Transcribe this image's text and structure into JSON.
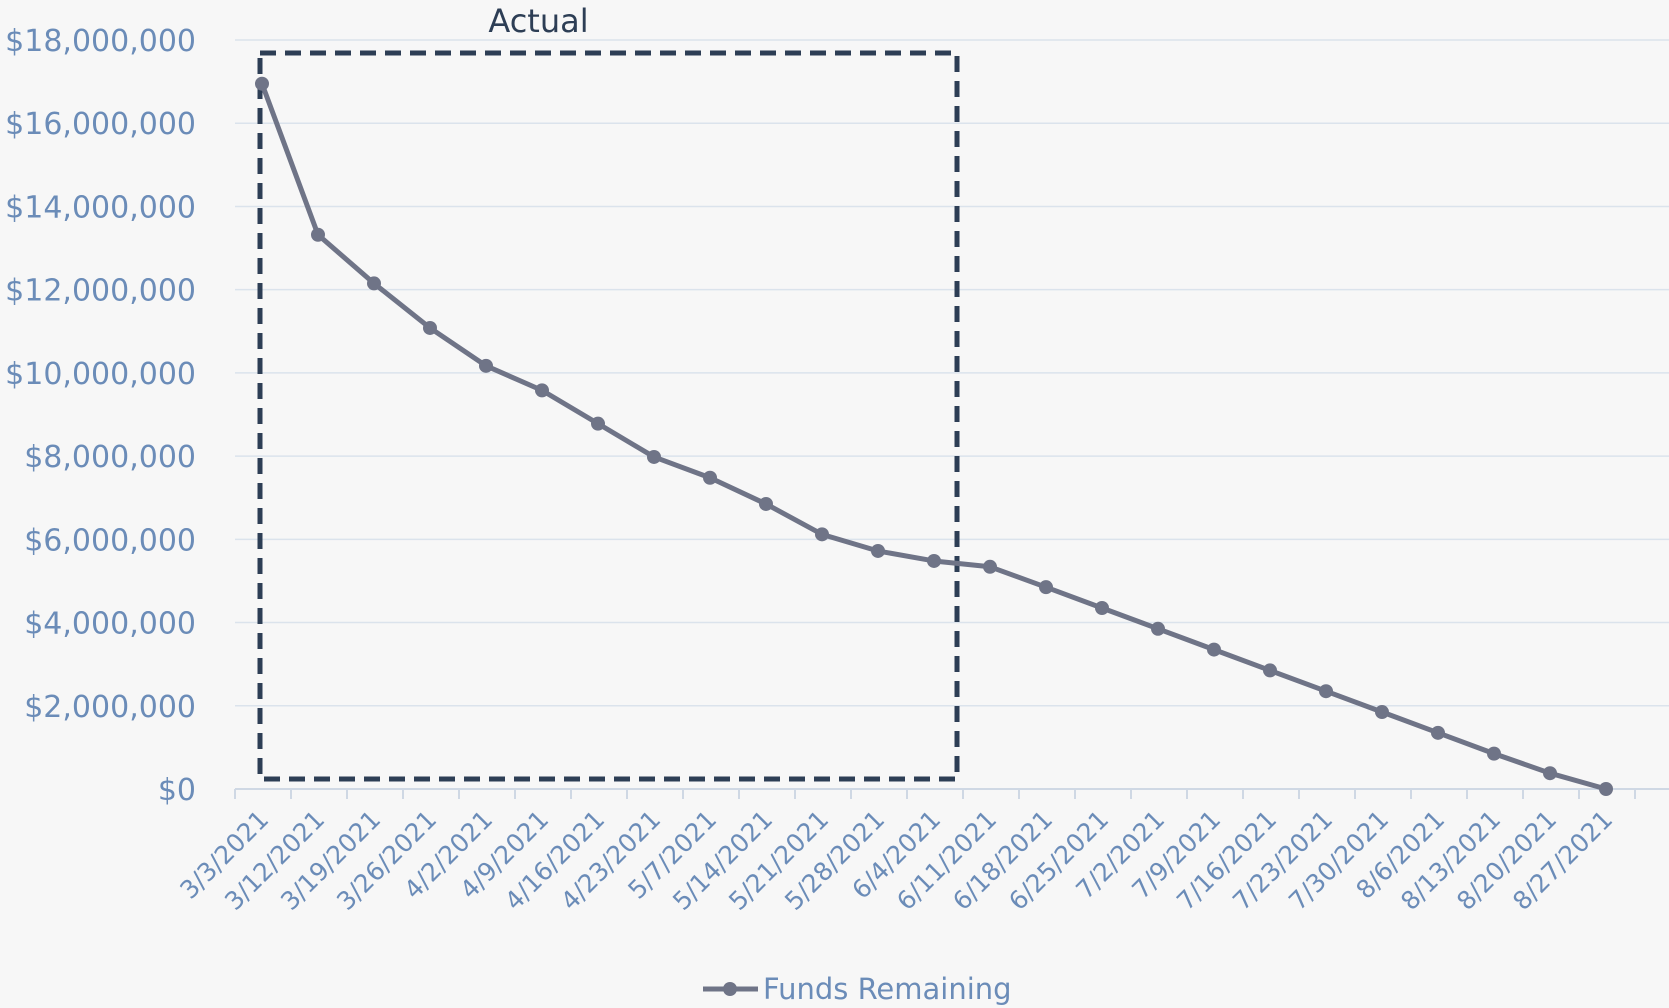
{
  "chart_data": {
    "type": "line",
    "title": "",
    "xlabel": "",
    "ylabel": "",
    "ylim": [
      0,
      18000000
    ],
    "yticks": [
      "$0",
      "$2,000,000",
      "$4,000,000",
      "$6,000,000",
      "$8,000,000",
      "$10,000,000",
      "$12,000,000",
      "$14,000,000",
      "$16,000,000",
      "$18,000,000"
    ],
    "grid": true,
    "legend_position": "bottom",
    "categories": [
      "3/3/2021",
      "3/12/2021",
      "3/19/2021",
      "3/26/2021",
      "4/2/2021",
      "4/9/2021",
      "4/16/2021",
      "4/23/2021",
      "5/7/2021",
      "5/14/2021",
      "5/21/2021",
      "5/28/2021",
      "6/4/2021",
      "6/11/2021",
      "6/18/2021",
      "6/25/2021",
      "7/2/2021",
      "7/9/2021",
      "7/16/2021",
      "7/23/2021",
      "7/30/2021",
      "8/6/2021",
      "8/13/2021",
      "8/20/2021",
      "8/27/2021"
    ],
    "series": [
      {
        "name": "Funds Remaining",
        "color": "#6f7487",
        "values": [
          16950000,
          13320000,
          12150000,
          11080000,
          10170000,
          9580000,
          8780000,
          7980000,
          7480000,
          6850000,
          6120000,
          5720000,
          5480000,
          5340000,
          4850000,
          4350000,
          3850000,
          3350000,
          2850000,
          2350000,
          1850000,
          1350000,
          850000,
          380000,
          0
        ]
      }
    ],
    "annotations": [
      {
        "text": "Actual",
        "type": "dashed-box",
        "from": "3/3/2021",
        "to": "6/4/2021",
        "color": "#2d3e55"
      }
    ]
  }
}
